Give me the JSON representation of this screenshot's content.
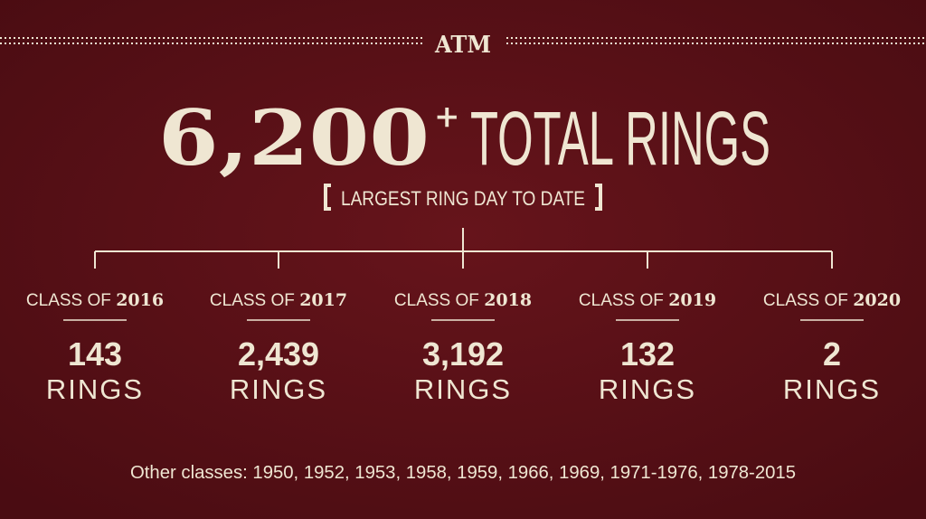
{
  "logo": "ATM",
  "headline": {
    "number": "6,200",
    "plus": "+",
    "text": "TOTAL RINGS"
  },
  "subtitle": "LARGEST RING DAY TO DATE",
  "classes": [
    {
      "label": "CLASS OF",
      "year": "2016",
      "count": "143",
      "unit": "RINGS"
    },
    {
      "label": "CLASS OF",
      "year": "2017",
      "count": "2,439",
      "unit": "RINGS"
    },
    {
      "label": "CLASS OF",
      "year": "2018",
      "count": "3,192",
      "unit": "RINGS"
    },
    {
      "label": "CLASS OF",
      "year": "2019",
      "count": "132",
      "unit": "RINGS"
    },
    {
      "label": "CLASS OF",
      "year": "2020",
      "count": "2",
      "unit": "RINGS"
    }
  ],
  "footer": "Other classes: 1950, 1952, 1953, 1958, 1959, 1966, 1969, 1971-1976, 1978-2015"
}
